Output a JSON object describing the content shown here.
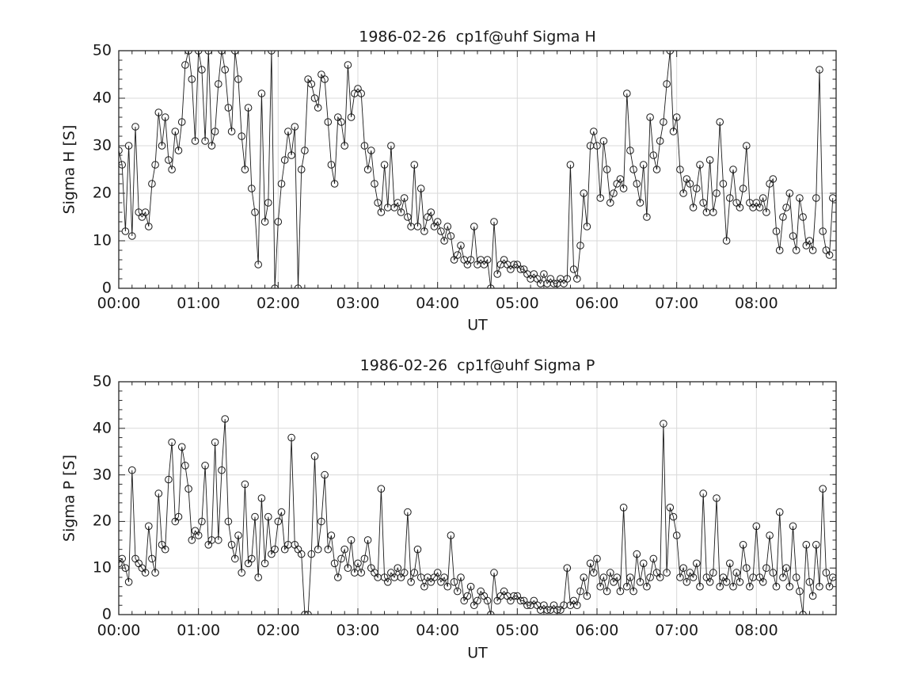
{
  "figure": {
    "background": "#ffffff",
    "axis_color": "#262626",
    "grid_color": "#d9d9d9",
    "line_color": "#1a1a1a",
    "marker_style": "open-circle"
  },
  "chart_data": [
    {
      "type": "line",
      "title": "1986-02-26  cp1f@uhf Sigma H",
      "ylabel": "Sigma H [S]",
      "xlabel": "UT",
      "ylim": [
        0,
        50
      ],
      "xlim_hours": [
        0,
        9
      ],
      "grid": true,
      "legend": "none",
      "ytick_labels": [
        "0",
        "10",
        "20",
        "30",
        "40",
        "50"
      ],
      "ytick_values": [
        0,
        10,
        20,
        30,
        40,
        50
      ],
      "xtick_labels": [
        "00:00",
        "01:00",
        "02:00",
        "03:00",
        "04:00",
        "05:00",
        "06:00",
        "07:00",
        "08:00"
      ],
      "xtick_hours": [
        0,
        1,
        2,
        3,
        4,
        5,
        6,
        7,
        8
      ],
      "x_start": "00:00",
      "x_step_minutes": 2.5,
      "values": [
        29,
        26,
        12,
        30,
        11,
        34,
        16,
        15,
        16,
        13,
        22,
        26,
        37,
        30,
        36,
        27,
        25,
        33,
        29,
        35,
        47,
        50,
        44,
        31,
        50,
        46,
        31,
        50,
        30,
        33,
        43,
        50,
        46,
        38,
        33,
        50,
        44,
        32,
        25,
        38,
        21,
        16,
        5,
        41,
        14,
        18,
        50,
        0,
        14,
        22,
        27,
        33,
        28,
        34,
        0,
        25,
        29,
        44,
        43,
        40,
        38,
        45,
        44,
        35,
        26,
        22,
        36,
        35,
        30,
        47,
        36,
        41,
        42,
        41,
        30,
        25,
        29,
        22,
        18,
        16,
        26,
        17,
        30,
        17,
        18,
        16,
        19,
        15,
        13,
        26,
        13,
        21,
        12,
        15,
        16,
        13,
        14,
        12,
        10,
        13,
        11,
        6,
        7,
        9,
        6,
        5,
        6,
        13,
        5,
        6,
        5,
        6,
        0,
        14,
        3,
        5,
        6,
        5,
        4,
        5,
        5,
        4,
        4,
        3,
        2,
        3,
        2,
        1,
        3,
        1,
        2,
        1,
        1,
        2,
        1,
        2,
        26,
        4,
        2,
        9,
        20,
        13,
        30,
        33,
        30,
        19,
        31,
        25,
        18,
        20,
        22,
        23,
        21,
        41,
        29,
        25,
        22,
        18,
        26,
        15,
        36,
        28,
        25,
        31,
        35,
        43,
        50,
        33,
        36,
        25,
        20,
        23,
        22,
        17,
        21,
        26,
        18,
        16,
        27,
        16,
        20,
        35,
        22,
        10,
        19,
        25,
        18,
        17,
        21,
        30,
        18,
        17,
        18,
        17,
        19,
        16,
        22,
        23,
        12,
        8,
        15,
        17,
        20,
        11,
        8,
        19,
        15,
        9,
        10,
        8,
        19,
        46,
        12,
        8,
        7,
        19
      ]
    },
    {
      "type": "line",
      "title": "1986-02-26  cp1f@uhf Sigma P",
      "ylabel": "Sigma P [S]",
      "xlabel": "UT",
      "ylim": [
        0,
        50
      ],
      "xlim_hours": [
        0,
        9
      ],
      "grid": true,
      "legend": "none",
      "ytick_labels": [
        "0",
        "10",
        "20",
        "30",
        "40",
        "50"
      ],
      "ytick_values": [
        0,
        10,
        20,
        30,
        40,
        50
      ],
      "xtick_labels": [
        "00:00",
        "01:00",
        "02:00",
        "03:00",
        "04:00",
        "05:00",
        "06:00",
        "07:00",
        "08:00"
      ],
      "xtick_hours": [
        0,
        1,
        2,
        3,
        4,
        5,
        6,
        7,
        8
      ],
      "x_start": "00:00",
      "x_step_minutes": 2.5,
      "values": [
        11,
        12,
        10,
        7,
        31,
        12,
        11,
        10,
        9,
        19,
        12,
        9,
        26,
        15,
        14,
        29,
        37,
        20,
        21,
        36,
        32,
        27,
        16,
        18,
        17,
        20,
        32,
        15,
        16,
        37,
        16,
        31,
        42,
        20,
        15,
        12,
        17,
        9,
        28,
        11,
        12,
        21,
        8,
        25,
        11,
        21,
        13,
        14,
        20,
        22,
        14,
        15,
        38,
        15,
        14,
        13,
        0,
        0,
        13,
        34,
        14,
        20,
        30,
        14,
        17,
        11,
        8,
        12,
        14,
        10,
        16,
        9,
        11,
        9,
        12,
        16,
        10,
        9,
        8,
        27,
        8,
        7,
        9,
        8,
        10,
        8,
        9,
        22,
        7,
        9,
        14,
        8,
        6,
        8,
        7,
        8,
        9,
        7,
        8,
        6,
        17,
        7,
        5,
        8,
        3,
        4,
        6,
        2,
        3,
        5,
        4,
        3,
        0,
        9,
        3,
        4,
        5,
        4,
        3,
        4,
        4,
        3,
        3,
        2,
        2,
        3,
        2,
        1,
        2,
        1,
        1,
        2,
        1,
        1,
        2,
        10,
        2,
        3,
        2,
        5,
        8,
        4,
        11,
        9,
        12,
        6,
        8,
        5,
        9,
        7,
        8,
        5,
        23,
        6,
        8,
        5,
        13,
        7,
        11,
        6,
        8,
        12,
        9,
        8,
        41,
        9,
        23,
        21,
        17,
        8,
        10,
        7,
        9,
        8,
        11,
        6,
        26,
        8,
        7,
        9,
        25,
        6,
        8,
        7,
        11,
        6,
        9,
        7,
        15,
        10,
        6,
        8,
        19,
        8,
        7,
        10,
        17,
        9,
        6,
        22,
        8,
        10,
        6,
        19,
        8,
        5,
        0,
        15,
        7,
        4,
        15,
        6,
        27,
        9,
        6,
        8
      ]
    }
  ]
}
